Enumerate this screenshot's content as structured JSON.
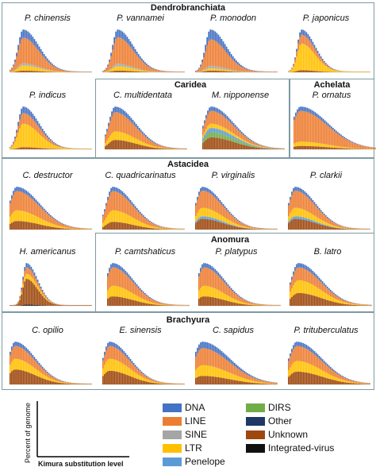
{
  "groups": [
    {
      "id": "dendro",
      "title": "Dendrobranchiata"
    },
    {
      "id": "caridea",
      "title": "Caridea"
    },
    {
      "id": "achelata",
      "title": "Achelata"
    },
    {
      "id": "astacidea",
      "title": "Astacidea"
    },
    {
      "id": "anomura",
      "title": "Anomura"
    },
    {
      "id": "brachyura",
      "title": "Brachyura"
    }
  ],
  "legend": [
    {
      "label": "DNA",
      "color": "#4472c4"
    },
    {
      "label": "LINE",
      "color": "#ed7d31"
    },
    {
      "label": "SINE",
      "color": "#a5a5a5"
    },
    {
      "label": "LTR",
      "color": "#ffc000"
    },
    {
      "label": "Penelope",
      "color": "#5b9bd5"
    },
    {
      "label": "DIRS",
      "color": "#70ad47"
    },
    {
      "label": "Other",
      "color": "#1f3864"
    },
    {
      "label": "Unknown",
      "color": "#9e480e"
    },
    {
      "label": "Integrated-virus",
      "color": "#111111"
    }
  ],
  "axis_labels": {
    "y": "Percent of genome",
    "x": "Kimura substitution level"
  },
  "chart_data": {
    "type": "area",
    "stacked": true,
    "x_range": [
      0,
      50
    ],
    "series_order": [
      "Integrated-virus",
      "Unknown",
      "Other",
      "DIRS",
      "Penelope",
      "LTR",
      "SINE",
      "LINE",
      "DNA"
    ],
    "panels": [
      {
        "species": "P. chinensis",
        "peak": 7,
        "mode": 8,
        "spread": 7,
        "mix": {
          "Unknown": 0.04,
          "SINE": 0.05,
          "LTR": 0.12,
          "LINE": 0.6,
          "DNA": 0.19
        }
      },
      {
        "species": "P. vannamei",
        "peak": 7,
        "mode": 9,
        "spread": 7,
        "mix": {
          "Unknown": 0.04,
          "SINE": 0.06,
          "LTR": 0.1,
          "LINE": 0.62,
          "DNA": 0.18
        }
      },
      {
        "species": "P. monodon",
        "peak": 7,
        "mode": 9,
        "spread": 7,
        "mix": {
          "Unknown": 0.04,
          "SINE": 0.06,
          "LTR": 0.05,
          "LINE": 0.62,
          "DNA": 0.23
        }
      },
      {
        "species": "P. japonicus",
        "peak": 7,
        "mode": 8,
        "spread": 6,
        "mix": {
          "Unknown": 0.05,
          "LTR": 0.62,
          "LINE": 0.21,
          "DNA": 0.12
        }
      },
      {
        "species": "P. indicus",
        "peak": 7,
        "mode": 8,
        "spread": 7,
        "mix": {
          "Unknown": 0.05,
          "LTR": 0.55,
          "LINE": 0.25,
          "DNA": 0.15
        }
      },
      {
        "species": "C. multidentata",
        "peak": 2.5,
        "mode": 6,
        "spread": 9,
        "mix": {
          "Unknown": 0.22,
          "LTR": 0.2,
          "LINE": 0.45,
          "DNA": 0.13
        }
      },
      {
        "species": "M. nipponense",
        "peak": 2.5,
        "mode": 5,
        "spread": 10,
        "mix": {
          "Unknown": 0.28,
          "DIRS": 0.12,
          "Penelope": 0.1,
          "LTR": 0.1,
          "LINE": 0.3,
          "DNA": 0.1
        }
      },
      {
        "species": "P. ornatus",
        "peak": 2.5,
        "mode": 4,
        "spread": 12,
        "mix": {
          "Unknown": 0.08,
          "LTR": 0.1,
          "LINE": 0.72,
          "DNA": 0.1
        }
      },
      {
        "species": "C. destructor",
        "peak": 2.5,
        "mode": 4,
        "spread": 10,
        "mix": {
          "Unknown": 0.2,
          "LTR": 0.25,
          "LINE": 0.45,
          "DNA": 0.1
        }
      },
      {
        "species": "C. quadricarinatus",
        "peak": 2.5,
        "mode": 6,
        "spread": 9,
        "mix": {
          "Unknown": 0.18,
          "LTR": 0.27,
          "LINE": 0.45,
          "DNA": 0.1
        }
      },
      {
        "species": "P. virginalis",
        "peak": 2.5,
        "mode": 4,
        "spread": 9,
        "mix": {
          "Unknown": 0.25,
          "Penelope": 0.06,
          "LTR": 0.2,
          "LINE": 0.4,
          "DNA": 0.09
        }
      },
      {
        "species": "P. clarkii",
        "peak": 2.5,
        "mode": 4,
        "spread": 9,
        "mix": {
          "Unknown": 0.25,
          "Penelope": 0.06,
          "LTR": 0.2,
          "LINE": 0.4,
          "DNA": 0.09
        }
      },
      {
        "species": "H. americanus",
        "peak": 4,
        "mode": 10,
        "spread": 5,
        "mix": {
          "Integrated-virus": 0.03,
          "Unknown": 0.6,
          "LTR": 0.12,
          "LINE": 0.15,
          "DNA": 0.1
        }
      },
      {
        "species": "P. camtshaticus",
        "peak": 2.5,
        "mode": 3,
        "spread": 9,
        "mix": {
          "Unknown": 0.22,
          "LTR": 0.25,
          "LINE": 0.43,
          "DNA": 0.1
        }
      },
      {
        "species": "P. platypus",
        "peak": 2.5,
        "mode": 3,
        "spread": 9,
        "mix": {
          "Unknown": 0.22,
          "LTR": 0.25,
          "LINE": 0.43,
          "DNA": 0.1
        }
      },
      {
        "species": "B. latro",
        "peak": 3,
        "mode": 5,
        "spread": 10,
        "mix": {
          "Unknown": 0.3,
          "LTR": 0.3,
          "LINE": 0.3,
          "DNA": 0.1
        }
      },
      {
        "species": "C. opilio",
        "peak": 3,
        "mode": 3,
        "spread": 9,
        "mix": {
          "Unknown": 0.35,
          "LTR": 0.25,
          "LINE": 0.3,
          "DNA": 0.1
        }
      },
      {
        "species": "E. sinensis",
        "peak": 3,
        "mode": 4,
        "spread": 9,
        "mix": {
          "Unknown": 0.32,
          "LTR": 0.28,
          "LINE": 0.3,
          "DNA": 0.1
        }
      },
      {
        "species": "C. sapidus",
        "peak": 3,
        "mode": 4,
        "spread": 12,
        "mix": {
          "Unknown": 0.2,
          "LTR": 0.25,
          "LINE": 0.4,
          "DNA": 0.15
        }
      },
      {
        "species": "P. trituberculatus",
        "peak": 3,
        "mode": 5,
        "spread": 11,
        "mix": {
          "Unknown": 0.3,
          "LTR": 0.25,
          "LINE": 0.35,
          "DNA": 0.1
        }
      }
    ]
  }
}
